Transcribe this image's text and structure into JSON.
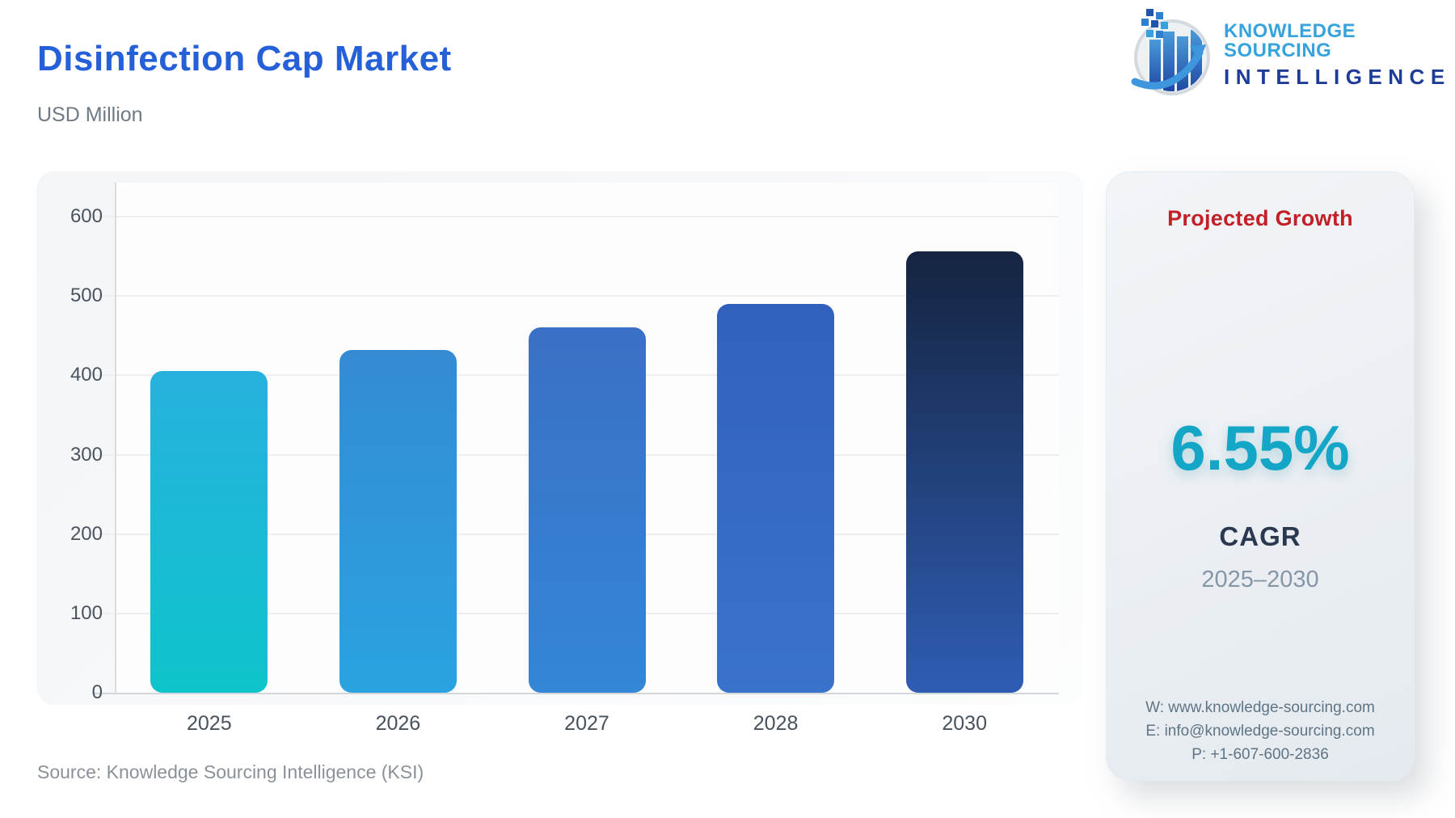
{
  "header": {
    "title": "Disinfection Cap Market",
    "subtitle": "USD Million",
    "title_color": "#2560d8"
  },
  "logo": {
    "line1": "KNOWLEDGE SOURCING",
    "line2": "INTELLIGENCE",
    "line1_color": "#36a3dd",
    "line2_color": "#1e3c96"
  },
  "chart_data": {
    "type": "bar",
    "title": "Disinfection Cap Market",
    "ylabel": "USD Million",
    "categories": [
      "2025",
      "2026",
      "2027",
      "2028",
      "2030"
    ],
    "values": [
      405,
      432,
      460,
      490,
      556
    ],
    "ylim": [
      0,
      600
    ],
    "yticks": [
      0,
      100,
      200,
      300,
      400,
      500,
      600
    ],
    "grid": true,
    "legend": "none",
    "bar_colors": [
      {
        "top": "#27b1de",
        "bottom": "#0ec4cb"
      },
      {
        "top": "#348bd3",
        "bottom": "#2aa3e1"
      },
      {
        "top": "#3a70c5",
        "bottom": "#3486d6"
      },
      {
        "top": "#3261bd",
        "bottom": "#3a73cb"
      },
      {
        "top": "#152440",
        "bottom": "#2f5db4"
      }
    ],
    "grid_color": "#eceef1",
    "axis_color": "#d6dade"
  },
  "panel": {
    "heading": "Projected Growth",
    "heading_color": "#c41e26",
    "value": "6.55%",
    "value_color": "#14a6c6",
    "value_caption": "CAGR",
    "period": "2025–2030",
    "contact": {
      "website": "W: www.knowledge-sourcing.com",
      "email": "E: info@knowledge-sourcing.com",
      "phone": "P: +1-607-600-2836"
    }
  },
  "footer": {
    "source": "Source: Knowledge Sourcing Intelligence (KSI)"
  }
}
